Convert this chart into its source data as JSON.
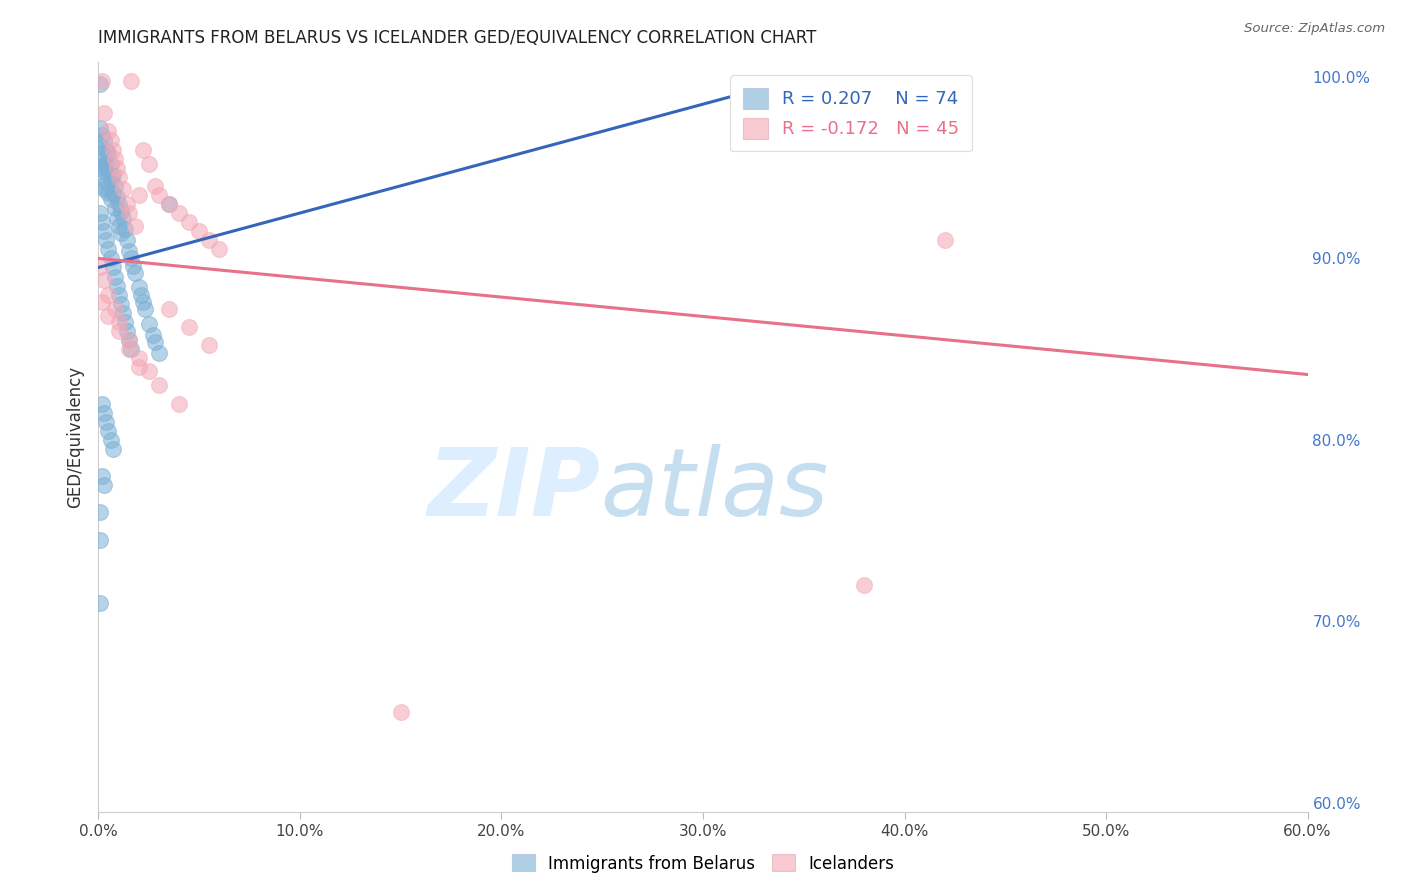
{
  "title": "IMMIGRANTS FROM BELARUS VS ICELANDER GED/EQUIVALENCY CORRELATION CHART",
  "source": "Source: ZipAtlas.com",
  "ylabel": "GED/Equivalency",
  "xlim": [
    0.0,
    0.6
  ],
  "ylim": [
    0.595,
    1.008
  ],
  "xticks": [
    0.0,
    0.1,
    0.2,
    0.3,
    0.4,
    0.5,
    0.6
  ],
  "xticklabels": [
    "0.0%",
    "10.0%",
    "20.0%",
    "30.0%",
    "40.0%",
    "50.0%",
    "60.0%"
  ],
  "yticks_right": [
    0.6,
    0.7,
    0.8,
    0.9,
    1.0
  ],
  "yticklabels_right": [
    "60.0%",
    "70.0%",
    "80.0%",
    "90.0%",
    "100.0%"
  ],
  "grid_color": "#cccccc",
  "background_color": "#ffffff",
  "blue_color": "#7bafd4",
  "pink_color": "#f4a7b5",
  "blue_line_color": "#3366bb",
  "pink_line_color": "#e8708a",
  "R_blue": 0.207,
  "N_blue": 74,
  "R_pink": -0.172,
  "N_pink": 45,
  "blue_line_x0": 0.0,
  "blue_line_y0": 0.895,
  "blue_line_x1": 0.35,
  "blue_line_y1": 1.0,
  "pink_line_x0": 0.0,
  "pink_line_y0": 0.9,
  "pink_line_x1": 0.6,
  "pink_line_y1": 0.836,
  "blue_x": [
    0.001,
    0.001,
    0.001,
    0.001,
    0.002,
    0.002,
    0.002,
    0.002,
    0.003,
    0.003,
    0.003,
    0.003,
    0.004,
    0.004,
    0.004,
    0.005,
    0.005,
    0.005,
    0.006,
    0.006,
    0.006,
    0.007,
    0.007,
    0.008,
    0.008,
    0.009,
    0.009,
    0.01,
    0.01,
    0.011,
    0.011,
    0.012,
    0.013,
    0.014,
    0.015,
    0.016,
    0.017,
    0.018,
    0.02,
    0.021,
    0.022,
    0.023,
    0.025,
    0.027,
    0.028,
    0.03,
    0.001,
    0.002,
    0.003,
    0.004,
    0.005,
    0.006,
    0.007,
    0.008,
    0.009,
    0.01,
    0.011,
    0.012,
    0.013,
    0.014,
    0.015,
    0.016,
    0.002,
    0.003,
    0.004,
    0.005,
    0.006,
    0.007,
    0.002,
    0.003,
    0.001,
    0.001,
    0.001,
    0.035
  ],
  "blue_y": [
    0.996,
    0.972,
    0.963,
    0.95,
    0.968,
    0.958,
    0.951,
    0.94,
    0.965,
    0.955,
    0.948,
    0.938,
    0.96,
    0.952,
    0.942,
    0.958,
    0.948,
    0.936,
    0.952,
    0.943,
    0.933,
    0.946,
    0.936,
    0.94,
    0.928,
    0.934,
    0.922,
    0.93,
    0.918,
    0.926,
    0.914,
    0.922,
    0.916,
    0.91,
    0.904,
    0.9,
    0.896,
    0.892,
    0.884,
    0.88,
    0.876,
    0.872,
    0.864,
    0.858,
    0.854,
    0.848,
    0.925,
    0.92,
    0.915,
    0.91,
    0.905,
    0.9,
    0.895,
    0.89,
    0.885,
    0.88,
    0.875,
    0.87,
    0.865,
    0.86,
    0.855,
    0.85,
    0.82,
    0.815,
    0.81,
    0.805,
    0.8,
    0.795,
    0.78,
    0.775,
    0.76,
    0.745,
    0.71,
    0.93
  ],
  "pink_x": [
    0.002,
    0.003,
    0.005,
    0.006,
    0.007,
    0.008,
    0.009,
    0.01,
    0.012,
    0.014,
    0.015,
    0.016,
    0.018,
    0.02,
    0.022,
    0.025,
    0.028,
    0.03,
    0.035,
    0.04,
    0.045,
    0.05,
    0.055,
    0.06,
    0.001,
    0.003,
    0.005,
    0.008,
    0.01,
    0.015,
    0.02,
    0.025,
    0.035,
    0.045,
    0.055,
    0.002,
    0.005,
    0.01,
    0.015,
    0.02,
    0.03,
    0.04,
    0.42,
    0.38,
    0.15
  ],
  "pink_y": [
    0.998,
    0.98,
    0.97,
    0.965,
    0.96,
    0.955,
    0.95,
    0.945,
    0.938,
    0.93,
    0.925,
    0.998,
    0.918,
    0.935,
    0.96,
    0.952,
    0.94,
    0.935,
    0.93,
    0.925,
    0.92,
    0.915,
    0.91,
    0.905,
    0.895,
    0.888,
    0.88,
    0.872,
    0.865,
    0.855,
    0.845,
    0.838,
    0.872,
    0.862,
    0.852,
    0.876,
    0.868,
    0.86,
    0.85,
    0.84,
    0.83,
    0.82,
    0.91,
    0.72,
    0.65
  ]
}
